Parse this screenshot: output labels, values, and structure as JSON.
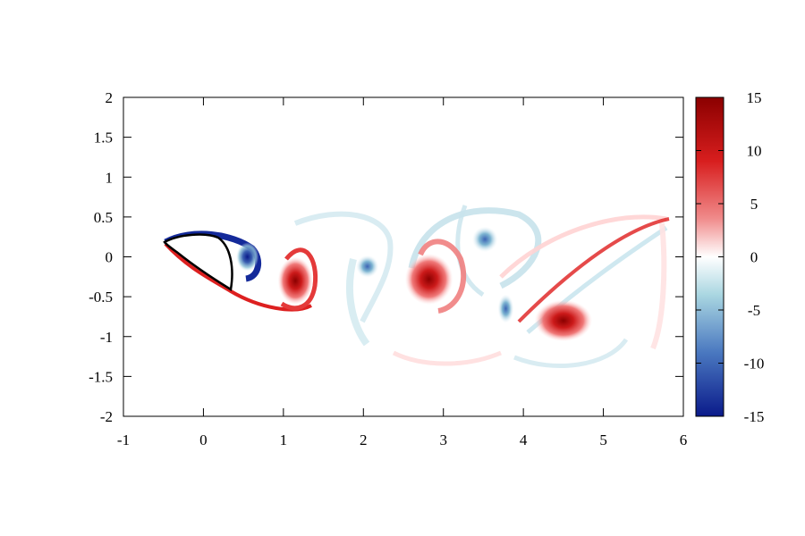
{
  "chart_data": {
    "type": "heatmap",
    "title": "",
    "xlabel": "",
    "ylabel": "",
    "xlim": [
      -1,
      6
    ],
    "ylim": [
      -2,
      2
    ],
    "x_ticks": [
      "-1",
      "0",
      "1",
      "2",
      "3",
      "4",
      "5",
      "6"
    ],
    "y_ticks": [
      "2",
      "1.5",
      "1",
      "0.5",
      "0",
      "-0.5",
      "-1",
      "-1.5",
      "-2"
    ],
    "colorbar": {
      "range": [
        -15,
        15
      ],
      "ticks": [
        "15",
        "10",
        "5",
        "0",
        "-5",
        "-10",
        "-15"
      ],
      "colors": {
        "max": "#8b0000",
        "high": "#e8302a",
        "mid": "#ffffff",
        "low": "#4a78c0",
        "min": "#0a1a8a"
      }
    },
    "vortices": [
      {
        "x": 0.55,
        "y": 0.0,
        "value": -14,
        "rx": 0.14,
        "ry": 0.18
      },
      {
        "x": 1.15,
        "y": -0.3,
        "value": 14,
        "rx": 0.22,
        "ry": 0.3
      },
      {
        "x": 2.05,
        "y": -0.12,
        "value": -10,
        "rx": 0.14,
        "ry": 0.14
      },
      {
        "x": 2.82,
        "y": -0.28,
        "value": 14,
        "rx": 0.3,
        "ry": 0.32
      },
      {
        "x": 3.52,
        "y": 0.22,
        "value": -9,
        "rx": 0.16,
        "ry": 0.16
      },
      {
        "x": 3.78,
        "y": -0.65,
        "value": -8,
        "rx": 0.1,
        "ry": 0.18
      },
      {
        "x": 4.5,
        "y": -0.8,
        "value": 15,
        "rx": 0.36,
        "ry": 0.26
      }
    ]
  }
}
